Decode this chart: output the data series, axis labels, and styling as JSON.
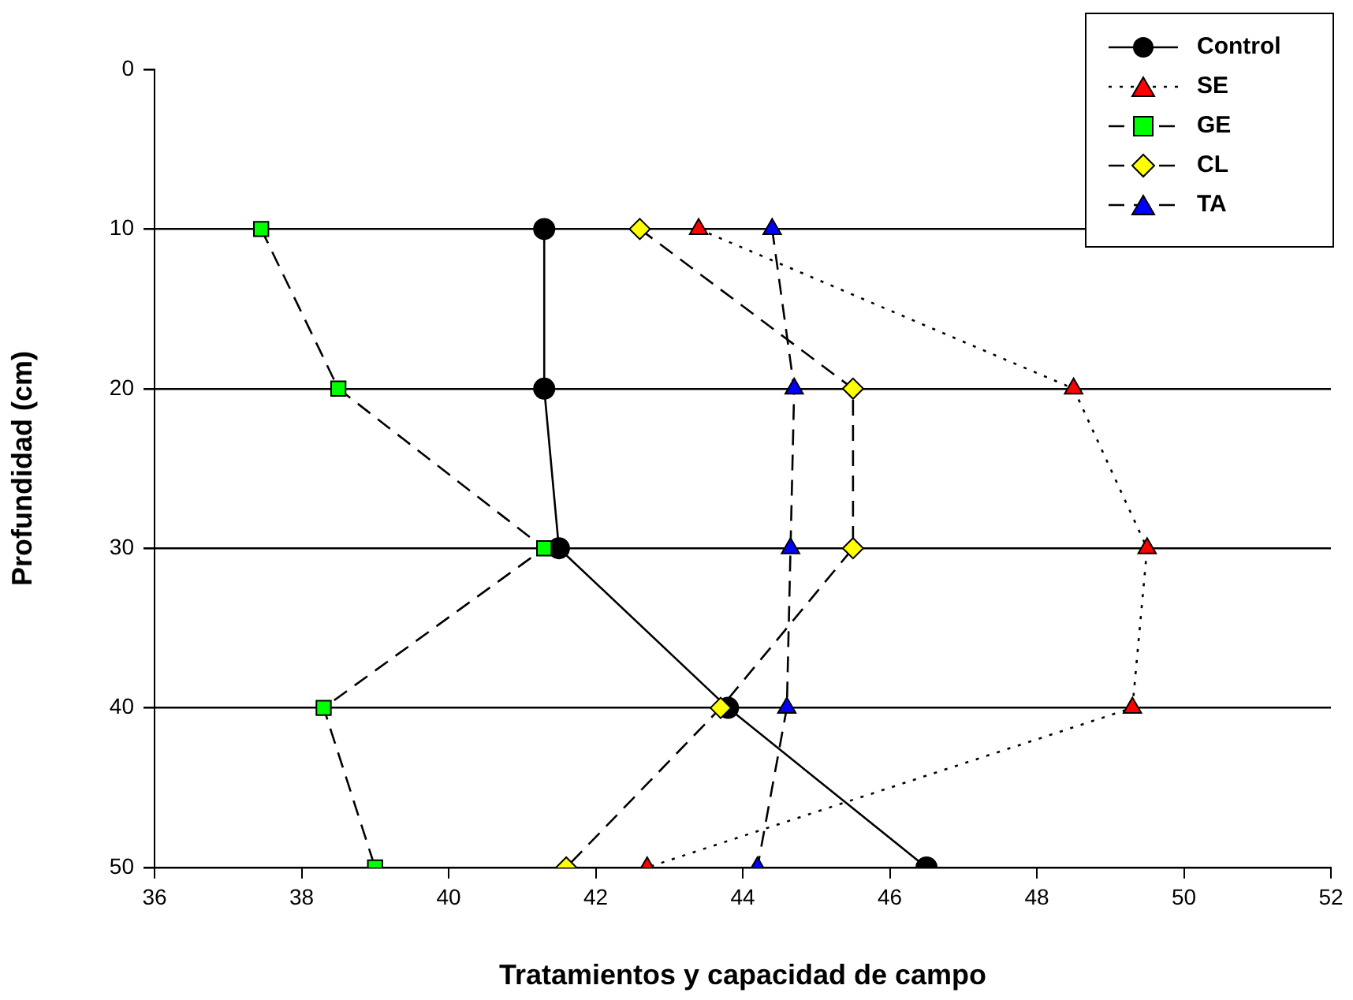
{
  "chart_data": {
    "type": "line",
    "xlabel": "Tratamientos y capacidad de campo",
    "ylabel": "Profundidad (cm)",
    "xlim": [
      36,
      52
    ],
    "xticks": [
      36,
      38,
      40,
      42,
      44,
      46,
      48,
      50,
      52
    ],
    "ylim": [
      50,
      0
    ],
    "yticks": [
      0,
      10,
      20,
      30,
      40,
      50
    ],
    "grid": "y",
    "legend": "top right",
    "series": [
      {
        "name": "Control",
        "color": "#000000",
        "marker": "circle",
        "line_style": "solid",
        "x": [
          41.3,
          41.3,
          41.5,
          43.8,
          46.5
        ],
        "values": [
          10,
          20,
          30,
          40,
          50
        ]
      },
      {
        "name": "SE",
        "color": "#ff0000",
        "marker": "triangle",
        "line_style": "dotted",
        "x": [
          43.4,
          48.5,
          49.5,
          49.3,
          42.7
        ],
        "values": [
          10,
          20,
          30,
          40,
          50
        ]
      },
      {
        "name": "GE",
        "color": "#00ff00",
        "marker": "square",
        "line_style": "dashed",
        "x": [
          37.45,
          38.5,
          41.3,
          38.3,
          39.0
        ],
        "values": [
          10,
          20,
          30,
          40,
          50
        ]
      },
      {
        "name": "CL",
        "color": "#ffff00",
        "marker": "diamond",
        "line_style": "dashed",
        "x": [
          42.6,
          45.5,
          45.5,
          43.7,
          41.6
        ],
        "values": [
          10,
          20,
          30,
          40,
          50
        ]
      },
      {
        "name": "TA",
        "color": "#0000ff",
        "marker": "triangle",
        "line_style": "dashed",
        "x": [
          44.4,
          44.7,
          44.65,
          44.6,
          44.2
        ],
        "values": [
          10,
          20,
          30,
          40,
          50
        ]
      }
    ]
  }
}
